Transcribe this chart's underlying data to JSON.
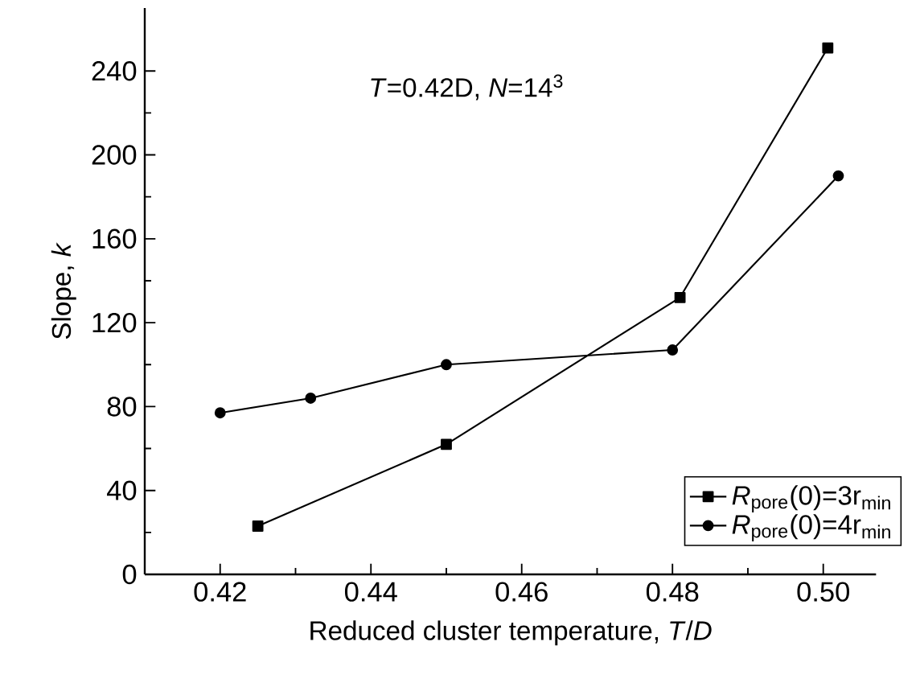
{
  "chart_data": {
    "type": "line",
    "xlabel": "Reduced cluster temperature, *T*/*D*",
    "ylabel": "Slope, *k*",
    "annotations": [
      "*T*=0.42D, *N*=14$^{3}$"
    ],
    "xlim": [
      0.41,
      0.507
    ],
    "xticks": [
      0.42,
      0.44,
      0.46,
      0.48,
      {
        "value": 0.5,
        "label": "0.50"
      }
    ],
    "ylim": [
      0,
      270
    ],
    "yticks": [
      0,
      40,
      80,
      120,
      160,
      200,
      240
    ],
    "legend": "bottom right",
    "grid": false,
    "line_style": "solid",
    "series": [
      {
        "name": "*R*$_{pore}$(0)=3r$_{min}$",
        "color": "#000000",
        "marker": "square",
        "x": [
          0.425,
          0.45,
          0.481,
          0.5006
        ],
        "values": [
          23,
          62,
          132,
          251
        ]
      },
      {
        "name": "*R*$_{pore}$(0)=4r$_{min}$",
        "color": "#000000",
        "marker": "circle",
        "x": [
          0.42,
          0.432,
          0.45,
          0.48,
          0.502
        ],
        "values": [
          77,
          84,
          100,
          107,
          190
        ]
      }
    ]
  }
}
